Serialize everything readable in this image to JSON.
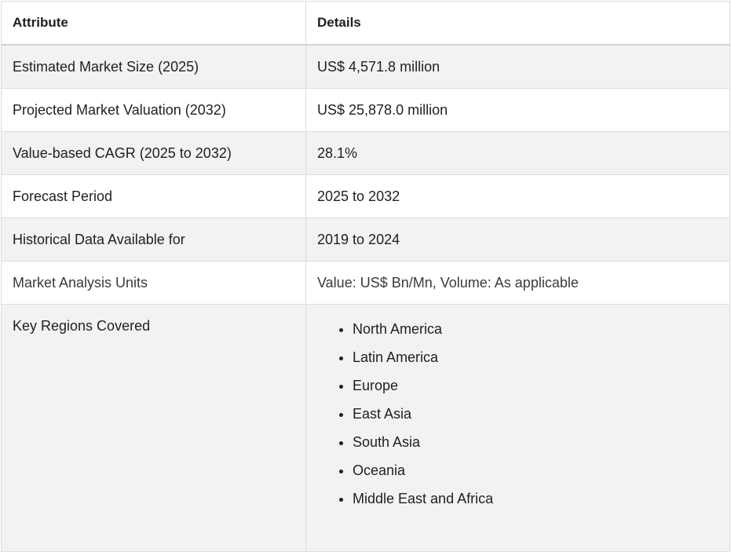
{
  "table": {
    "headers": {
      "attribute": "Attribute",
      "details": "Details"
    },
    "rows": [
      {
        "attribute": "Estimated Market Size (2025)",
        "details": "US$ 4,571.8 million"
      },
      {
        "attribute": "Projected Market Valuation (2032)",
        "details": "US$ 25,878.0 million"
      },
      {
        "attribute": "Value-based CAGR (2025 to 2032)",
        "details": "28.1%"
      },
      {
        "attribute": "Forecast Period",
        "details": "2025 to 2032"
      },
      {
        "attribute": "Historical Data Available for",
        "details": "2019 to 2024"
      },
      {
        "attribute": "Market Analysis Units",
        "details": "Value: US$ Bn/Mn, Volume: As applicable"
      }
    ],
    "regions": {
      "attribute": "Key Regions Covered",
      "items": [
        "North America",
        "Latin America",
        "Europe",
        "East Asia",
        "South Asia",
        "Oceania",
        "Middle East and Africa"
      ]
    }
  },
  "colors": {
    "row_alt_background": "#f2f2f2",
    "border": "#dcdcdc",
    "text": "#1f1f1f"
  }
}
